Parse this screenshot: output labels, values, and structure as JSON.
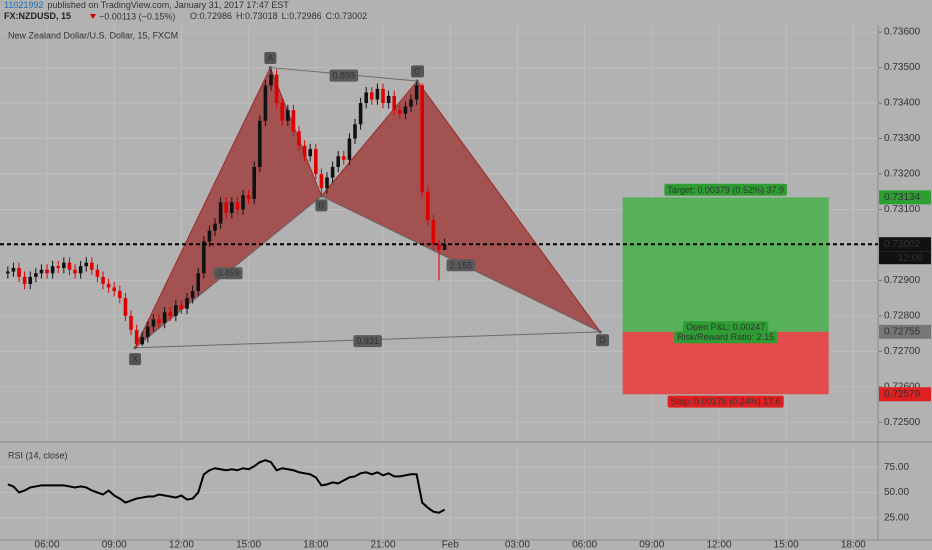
{
  "chart_data": {
    "type": "candlestick",
    "header": {
      "publisher": "11021992",
      "published": "published on TradingView.com, January 31, 2017 17:47 EST",
      "symbol": "FX:NZDUSD, 15",
      "change": "−0.00113 (−0.15%)",
      "ohlc": [
        "O:0.72986",
        "H:0.73018",
        "L:0.72986",
        "C:0.73002"
      ]
    },
    "title": "New Zealand Dollar/U.S. Dollar, 15, FXCM",
    "x": [
      4.25,
      4.5,
      4.75,
      5,
      5.25,
      5.5,
      5.75,
      6,
      6.25,
      6.5,
      6.75,
      7,
      7.25,
      7.5,
      7.75,
      8,
      8.25,
      8.5,
      8.75,
      9,
      9.25,
      9.5,
      9.75,
      10,
      10.25,
      10.5,
      10.75,
      11,
      11.25,
      11.5,
      11.75,
      12,
      12.25,
      12.5,
      12.75,
      13,
      13.25,
      13.5,
      13.75,
      14,
      14.25,
      14.5,
      14.75,
      15,
      15.25,
      15.5,
      15.75,
      16,
      16.25,
      16.5,
      16.75,
      17,
      17.25,
      17.5,
      17.75,
      18,
      18.25,
      18.5,
      18.75,
      19,
      19.25,
      19.5,
      19.75,
      20,
      20.25,
      20.5,
      20.75,
      21,
      21.25,
      21.5,
      21.75,
      22,
      22.25,
      22.5,
      22.75,
      23,
      23.25,
      23.5,
      23.75
    ],
    "open": [
      0.7292,
      0.72925,
      0.72935,
      0.7291,
      0.7289,
      0.7291,
      0.7292,
      0.7293,
      0.7292,
      0.7294,
      0.72935,
      0.7295,
      0.7293,
      0.7292,
      0.7294,
      0.7295,
      0.7293,
      0.7291,
      0.7289,
      0.7288,
      0.7287,
      0.7285,
      0.728,
      0.7276,
      0.7272,
      0.7274,
      0.7277,
      0.7279,
      0.7278,
      0.7281,
      0.728,
      0.7283,
      0.7282,
      0.7285,
      0.7287,
      0.7292,
      0.7301,
      0.7304,
      0.7306,
      0.7312,
      0.7309,
      0.7312,
      0.731,
      0.7314,
      0.7313,
      0.7322,
      0.7335,
      0.7345,
      0.7348,
      0.734,
      0.7335,
      0.7338,
      0.7332,
      0.7328,
      0.7325,
      0.7327,
      0.732,
      0.7316,
      0.7319,
      0.7322,
      0.7325,
      0.7324,
      0.733,
      0.7334,
      0.734,
      0.7343,
      0.7341,
      0.7344,
      0.734,
      0.7342,
      0.7338,
      0.7337,
      0.7339,
      0.7341,
      0.7345,
      0.7315,
      0.7307,
      0.73,
      0.72986
    ],
    "high": [
      0.7294,
      0.7295,
      0.7295,
      0.72925,
      0.72925,
      0.72935,
      0.72945,
      0.72945,
      0.72955,
      0.72955,
      0.72965,
      0.72965,
      0.72945,
      0.72955,
      0.72965,
      0.72965,
      0.72945,
      0.72925,
      0.72905,
      0.72895,
      0.72885,
      0.72865,
      0.72815,
      0.72775,
      0.72755,
      0.72785,
      0.72805,
      0.72805,
      0.72825,
      0.72825,
      0.72845,
      0.72845,
      0.72865,
      0.72885,
      0.72935,
      0.73025,
      0.73055,
      0.73075,
      0.73135,
      0.73135,
      0.73135,
      0.73135,
      0.73155,
      0.73155,
      0.73235,
      0.73365,
      0.73465,
      0.735,
      0.73495,
      0.73415,
      0.73395,
      0.73395,
      0.73335,
      0.73295,
      0.73285,
      0.73285,
      0.73215,
      0.73205,
      0.73235,
      0.73265,
      0.73265,
      0.73315,
      0.73355,
      0.73415,
      0.73445,
      0.73445,
      0.73455,
      0.73455,
      0.73435,
      0.73435,
      0.73395,
      0.73405,
      0.73425,
      0.7346,
      0.73455,
      0.73165,
      0.73085,
      0.73015,
      0.73018
    ],
    "low": [
      0.72905,
      0.7291,
      0.72895,
      0.72875,
      0.72875,
      0.72895,
      0.72905,
      0.72905,
      0.72905,
      0.7292,
      0.7292,
      0.72915,
      0.72905,
      0.72905,
      0.72925,
      0.72915,
      0.72895,
      0.72875,
      0.72865,
      0.72855,
      0.72835,
      0.72785,
      0.72745,
      0.7271,
      0.72715,
      0.72725,
      0.72755,
      0.72765,
      0.72765,
      0.72785,
      0.72785,
      0.72805,
      0.72805,
      0.72835,
      0.72855,
      0.72905,
      0.72995,
      0.73025,
      0.73045,
      0.73075,
      0.73075,
      0.73085,
      0.73085,
      0.73115,
      0.73115,
      0.73205,
      0.73335,
      0.73435,
      0.73385,
      0.73335,
      0.73335,
      0.73305,
      0.73265,
      0.73235,
      0.73235,
      0.73185,
      0.7314,
      0.73145,
      0.73175,
      0.73205,
      0.73225,
      0.73225,
      0.73285,
      0.73325,
      0.73385,
      0.73395,
      0.73395,
      0.73385,
      0.73385,
      0.73365,
      0.73355,
      0.73355,
      0.73375,
      0.73395,
      0.73135,
      0.73055,
      0.72985,
      0.729,
      0.72986
    ],
    "close": [
      0.72925,
      0.72935,
      0.7291,
      0.7289,
      0.7291,
      0.7292,
      0.7293,
      0.7292,
      0.7294,
      0.72935,
      0.7295,
      0.7293,
      0.7292,
      0.7294,
      0.7295,
      0.7293,
      0.7291,
      0.7289,
      0.7288,
      0.7287,
      0.7285,
      0.728,
      0.7276,
      0.7272,
      0.7274,
      0.7277,
      0.7279,
      0.7278,
      0.7281,
      0.728,
      0.7283,
      0.7282,
      0.7285,
      0.7287,
      0.7292,
      0.7301,
      0.7304,
      0.7306,
      0.7312,
      0.7309,
      0.7312,
      0.731,
      0.7314,
      0.7313,
      0.7322,
      0.7335,
      0.7345,
      0.7348,
      0.734,
      0.7335,
      0.7338,
      0.7332,
      0.7328,
      0.7325,
      0.7327,
      0.732,
      0.7316,
      0.7319,
      0.7322,
      0.7325,
      0.7324,
      0.733,
      0.7334,
      0.734,
      0.7343,
      0.7341,
      0.7344,
      0.734,
      0.7342,
      0.7338,
      0.7337,
      0.7339,
      0.7341,
      0.7345,
      0.7315,
      0.7307,
      0.73,
      0.72986,
      0.73002
    ],
    "up_color": "#111111",
    "down_color": "#e00000",
    "xlim": [
      3.9,
      43.1
    ],
    "xticks": [
      {
        "value": 6,
        "label": "06:00"
      },
      {
        "value": 9,
        "label": "09:00"
      },
      {
        "value": 12,
        "label": "12:00"
      },
      {
        "value": 15,
        "label": "15:00"
      },
      {
        "value": 18,
        "label": "18:00"
      },
      {
        "value": 21,
        "label": "21:00"
      },
      {
        "value": 24,
        "label": "Feb"
      },
      {
        "value": 27,
        "label": "03:00"
      },
      {
        "value": 30,
        "label": "06:00"
      },
      {
        "value": 33,
        "label": "09:00"
      },
      {
        "value": 36,
        "label": "12:00"
      },
      {
        "value": 39,
        "label": "15:00"
      },
      {
        "value": 42,
        "label": "18:00"
      }
    ],
    "ylim": [
      0.7245,
      0.7362
    ],
    "yticks": [
      {
        "value": 0.725,
        "label": "0.72500"
      },
      {
        "value": 0.726,
        "label": "0.72600"
      },
      {
        "value": 0.727,
        "label": "0.72700"
      },
      {
        "value": 0.728,
        "label": "0.72800"
      },
      {
        "value": 0.729,
        "label": "0.72900"
      },
      {
        "value": 0.731,
        "label": "0.73100"
      },
      {
        "value": 0.732,
        "label": "0.73200"
      },
      {
        "value": 0.733,
        "label": "0.73300"
      },
      {
        "value": 0.734,
        "label": "0.73400"
      },
      {
        "value": 0.735,
        "label": "0.73500"
      },
      {
        "value": 0.736,
        "label": "0.73600"
      }
    ],
    "grid": true,
    "countdown": "12:06",
    "pattern": {
      "color": "#9c2a2a",
      "points": [
        {
          "label": "X",
          "x": 9.93,
          "y": 0.7271
        },
        {
          "label": "A",
          "x": 15.97,
          "y": 0.735
        },
        {
          "label": "B",
          "x": 18.25,
          "y": 0.73138
        },
        {
          "label": "C",
          "x": 22.53,
          "y": 0.73462
        },
        {
          "label": "D",
          "x": 30.7,
          "y": 0.72755
        }
      ],
      "ratios": [
        {
          "label": "0.459",
          "from": 0,
          "to": 2
        },
        {
          "label": "0.893",
          "from": 1,
          "to": 3
        },
        {
          "label": "0.931",
          "from": 0,
          "to": 4
        },
        {
          "label": "2.155",
          "from": 2,
          "to": 4
        }
      ]
    },
    "position": {
      "x": [
        31.7,
        40.9
      ],
      "entry": 0.72755,
      "target": 0.73134,
      "stop": 0.72579,
      "target_label": "Target: 0.00379 (0.52%) 37.9",
      "pnl_label": "Open P&L: 0.00247",
      "rr_label": "Risk/Reward Ratio: 2.15",
      "stop_label": "Stop: 0.00176 (0.24%) 17.6"
    },
    "rsi": {
      "name": "RSI (14, close)",
      "color": "#000000",
      "values": [
        58,
        56,
        50,
        52,
        55,
        56,
        57,
        57,
        57,
        57,
        57,
        56,
        55,
        56,
        55,
        52,
        50,
        48,
        52,
        47,
        44,
        40,
        42,
        44,
        45,
        46,
        46,
        48,
        47,
        46,
        45,
        47,
        43,
        44,
        50,
        68,
        72,
        74,
        73,
        72,
        73,
        72,
        74,
        73,
        76,
        80,
        82,
        80,
        72,
        74,
        73,
        72,
        70,
        69,
        68,
        65,
        57,
        58,
        60,
        59,
        62,
        65,
        66,
        69,
        70,
        68,
        70,
        67,
        69,
        66,
        66,
        67,
        68,
        68,
        40,
        35,
        31,
        30,
        33
      ],
      "ylim": [
        3,
        97
      ],
      "yticks": [
        {
          "value": 25,
          "label": "25.00"
        },
        {
          "value": 50,
          "label": "50.00"
        },
        {
          "value": 75,
          "label": "75.00"
        }
      ]
    }
  }
}
